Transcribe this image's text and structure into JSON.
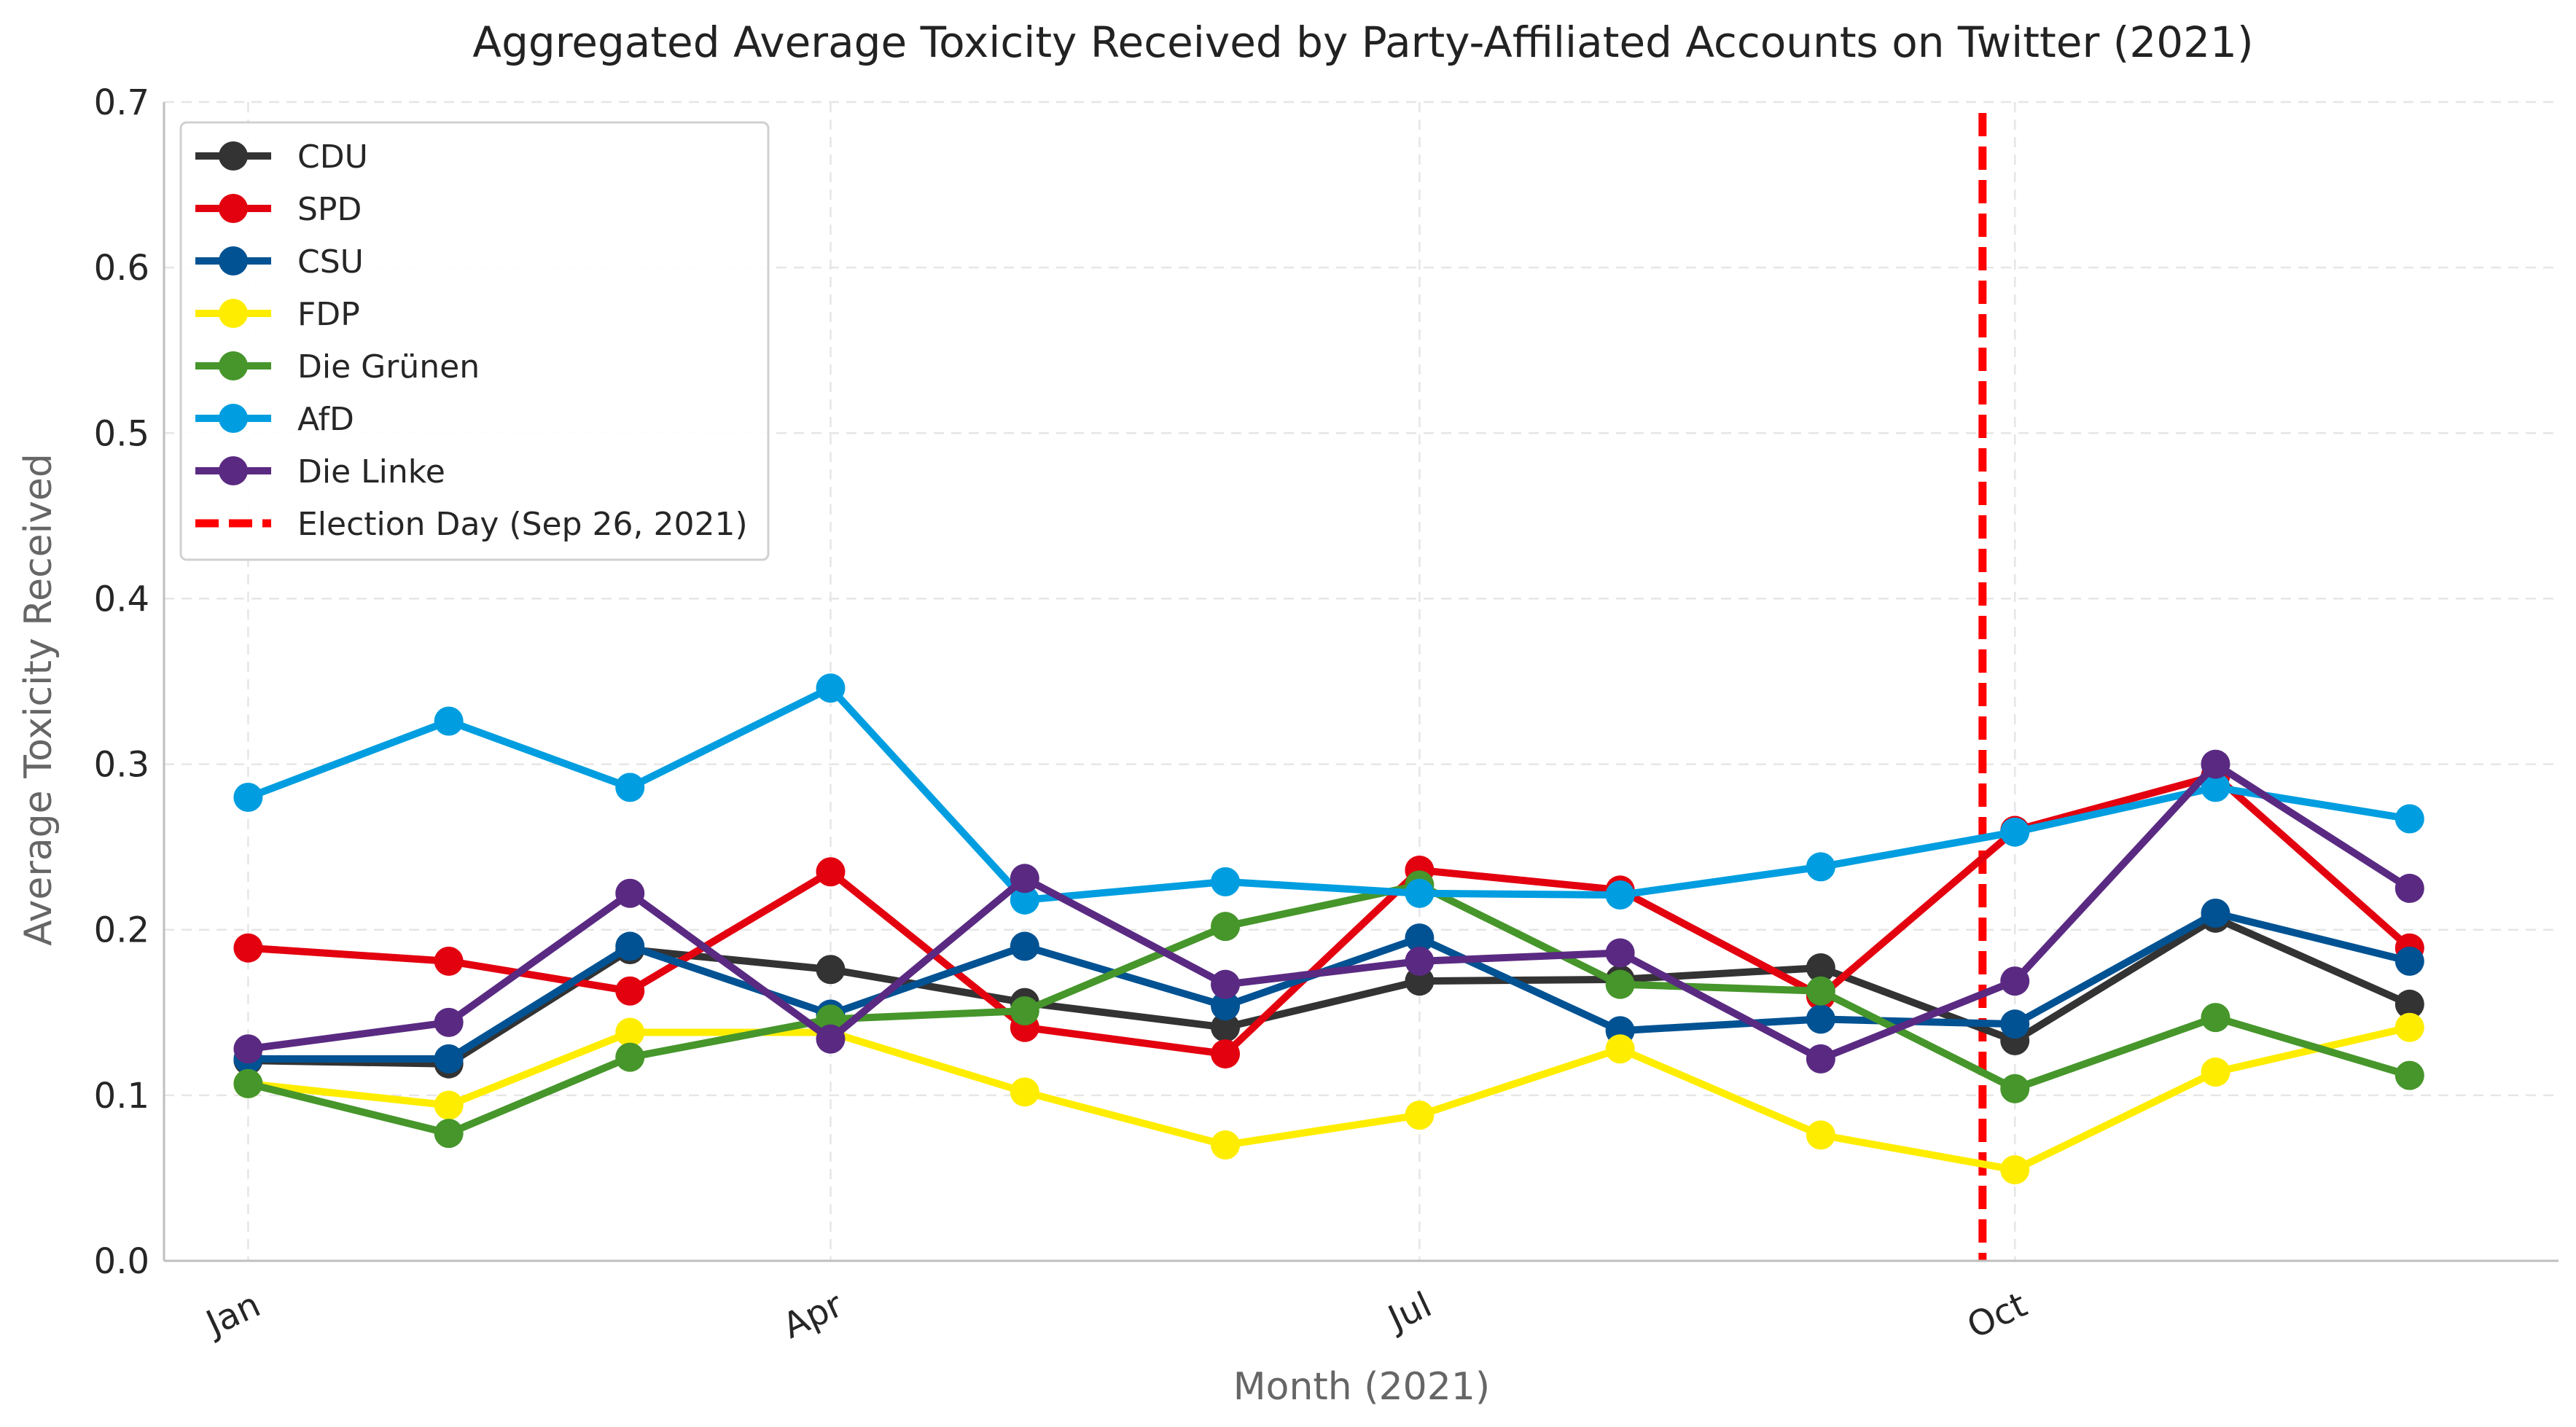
{
  "chart_data": {
    "type": "line",
    "title": "Aggregated Average Toxicity Received by Party-Affiliated Accounts on Twitter (2021)",
    "xlabel": "Month (2021)",
    "ylabel": "Average Toxicity Received",
    "x": [
      "2021-01",
      "2021-02",
      "2021-03",
      "2021-04",
      "2021-05",
      "2021-06",
      "2021-07",
      "2021-08",
      "2021-09",
      "2021-10",
      "2021-11",
      "2021-12"
    ],
    "x_tick_labels": [
      {
        "x": "2021-01",
        "label": "Jan"
      },
      {
        "x": "2021-04",
        "label": "Apr"
      },
      {
        "x": "2021-07",
        "label": "Jul"
      },
      {
        "x": "2021-10",
        "label": "Oct"
      }
    ],
    "xlim": [
      "2020-12-19",
      "2021-12-24"
    ],
    "ylim": [
      0.0,
      0.7
    ],
    "y_ticks": [
      "0.0",
      "0.1",
      "0.2",
      "0.3",
      "0.4",
      "0.5",
      "0.6",
      "0.7"
    ],
    "grid": true,
    "legend_position": "upper-left",
    "series": [
      {
        "name": "CDU",
        "color": "#333333",
        "values": [
          0.121,
          0.119,
          0.188,
          0.176,
          0.156,
          0.141,
          0.169,
          0.17,
          0.177,
          0.133,
          0.207,
          0.155
        ]
      },
      {
        "name": "SPD",
        "color": "#e3000f",
        "values": [
          0.189,
          0.181,
          0.163,
          0.235,
          0.141,
          0.125,
          0.236,
          0.224,
          0.16,
          0.26,
          0.293,
          0.189
        ]
      },
      {
        "name": "CSU",
        "color": "#005293",
        "values": [
          0.122,
          0.122,
          0.19,
          0.149,
          0.19,
          0.154,
          0.195,
          0.139,
          0.146,
          0.143,
          0.21,
          0.181
        ]
      },
      {
        "name": "FDP",
        "color": "#ffed00",
        "values": [
          0.107,
          0.094,
          0.138,
          0.138,
          0.102,
          0.07,
          0.088,
          0.128,
          0.076,
          0.055,
          0.114,
          0.141
        ]
      },
      {
        "name": "Die Grünen",
        "color": "#46962b",
        "values": [
          0.107,
          0.077,
          0.123,
          0.146,
          0.151,
          0.202,
          0.227,
          0.167,
          0.163,
          0.104,
          0.147,
          0.112
        ]
      },
      {
        "name": "AfD",
        "color": "#009ee0",
        "values": [
          0.28,
          0.326,
          0.286,
          0.346,
          0.218,
          0.229,
          0.222,
          0.221,
          0.238,
          0.259,
          0.286,
          0.267
        ]
      },
      {
        "name": "Die Linke",
        "color": "#5a2a82",
        "values": [
          0.128,
          0.144,
          0.222,
          0.134,
          0.231,
          0.167,
          0.181,
          0.186,
          0.122,
          0.169,
          0.3,
          0.225
        ]
      }
    ],
    "annotations": [
      {
        "type": "vline",
        "label": "Election Day (Sep 26, 2021)",
        "x": "2021-09-26",
        "color": "#ff0000",
        "style": "dashed"
      }
    ]
  }
}
